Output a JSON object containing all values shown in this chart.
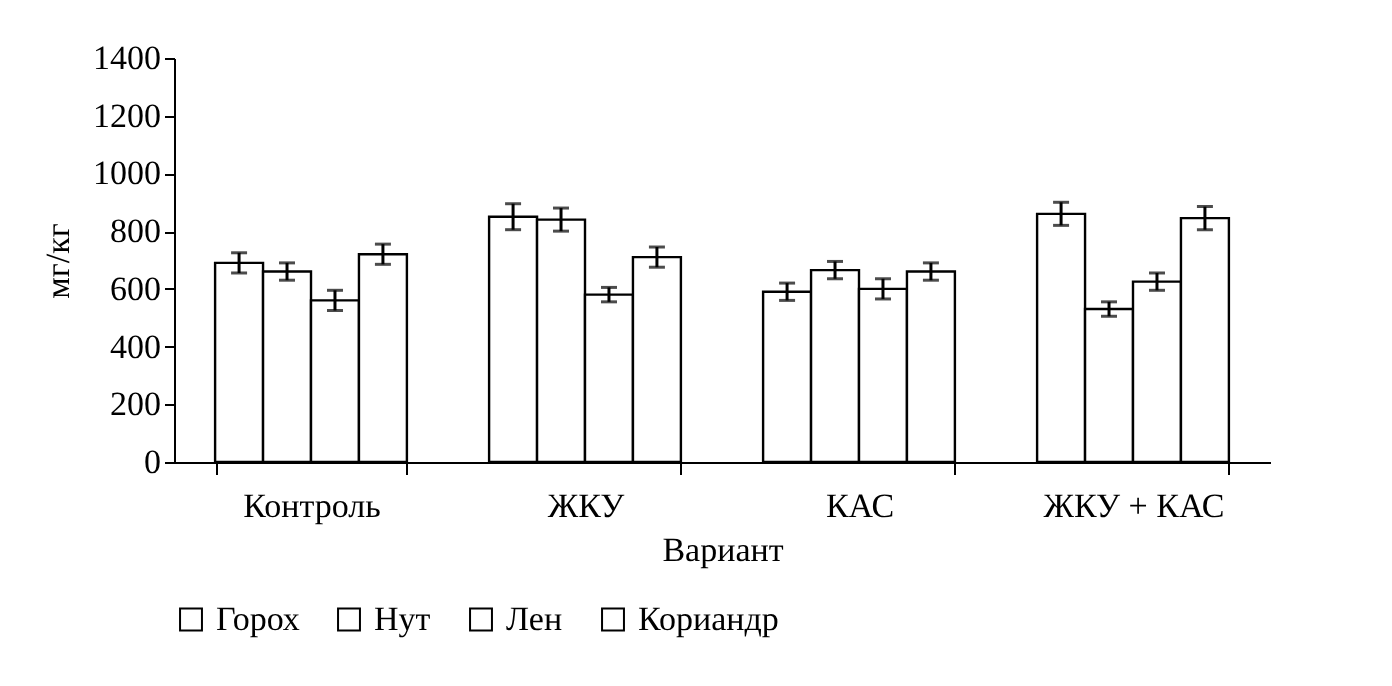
{
  "chart_data": {
    "type": "bar",
    "xlabel": "Вариант",
    "ylabel": "мг/кг",
    "categories": [
      "Контроль",
      "ЖКУ",
      "КАС",
      "ЖКУ + КАС"
    ],
    "series": [
      {
        "name": "Горох",
        "color": "#ffffff",
        "values": [
          690,
          850,
          590,
          860
        ],
        "errors": [
          35,
          45,
          30,
          40
        ]
      },
      {
        "name": "Нут",
        "color": "#ffffff",
        "values": [
          660,
          840,
          665,
          530
        ],
        "errors": [
          30,
          40,
          30,
          25
        ]
      },
      {
        "name": "Лен",
        "color": "#ffffff",
        "values": [
          560,
          580,
          600,
          625
        ],
        "errors": [
          35,
          25,
          35,
          30
        ]
      },
      {
        "name": "Кориандр",
        "color": "#ffffff",
        "values": [
          720,
          710,
          660,
          845
        ],
        "errors": [
          35,
          35,
          30,
          40
        ]
      }
    ],
    "ylim": [
      0,
      1400
    ],
    "yticks": [
      0,
      200,
      400,
      600,
      800,
      1000,
      1200,
      1400
    ],
    "grid": false,
    "legend": "bottom"
  }
}
